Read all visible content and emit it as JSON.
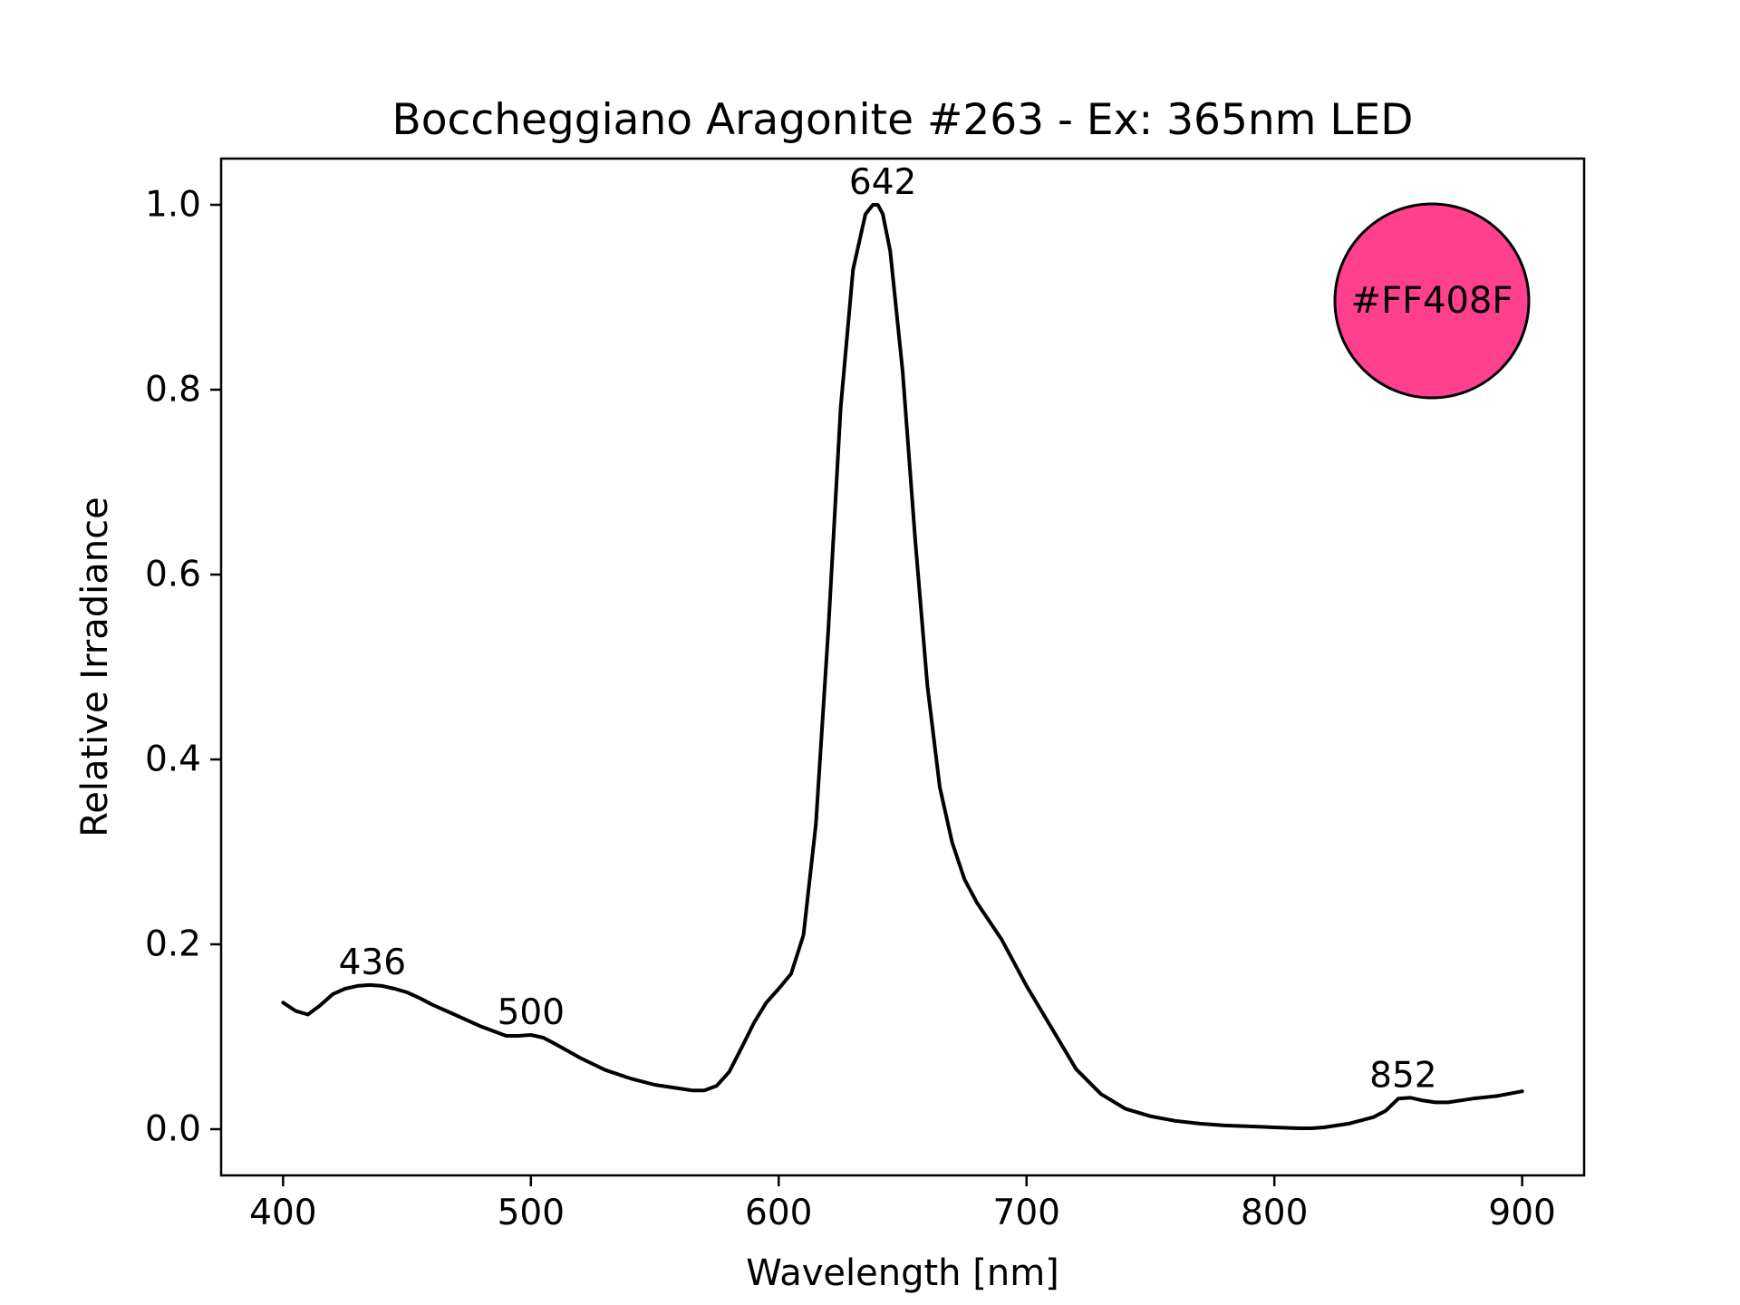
{
  "chart_data": {
    "type": "line",
    "title": "Boccheggiano Aragonite #263 - Ex: 365nm LED",
    "xlabel": "Wavelength [nm]",
    "ylabel": "Relative Irradiance",
    "xlim": [
      375,
      925
    ],
    "ylim": [
      -0.05,
      1.05
    ],
    "xticks": [
      400,
      500,
      600,
      700,
      800,
      900
    ],
    "yticks": [
      0.0,
      0.2,
      0.4,
      0.6,
      0.8,
      1.0
    ],
    "xtick_labels": [
      "400",
      "500",
      "600",
      "700",
      "800",
      "900"
    ],
    "ytick_labels": [
      "0.0",
      "0.2",
      "0.4",
      "0.6",
      "0.8",
      "1.0"
    ],
    "grid": false,
    "line_color": "#000000",
    "series": [
      {
        "x": [
          400,
          405,
          410,
          415,
          420,
          425,
          430,
          435,
          440,
          445,
          450,
          455,
          460,
          470,
          480,
          490,
          495,
          500,
          505,
          510,
          520,
          530,
          540,
          550,
          560,
          565,
          570,
          575,
          580,
          585,
          590,
          595,
          600,
          605,
          610,
          615,
          620,
          625,
          630,
          635,
          638,
          640,
          642,
          645,
          650,
          655,
          660,
          665,
          670,
          675,
          680,
          685,
          690,
          695,
          700,
          710,
          720,
          730,
          740,
          750,
          760,
          770,
          780,
          790,
          800,
          810,
          815,
          820,
          830,
          840,
          845,
          850,
          855,
          860,
          865,
          870,
          880,
          890,
          900
        ],
        "y": [
          0.137,
          0.128,
          0.124,
          0.134,
          0.146,
          0.152,
          0.155,
          0.156,
          0.155,
          0.152,
          0.148,
          0.142,
          0.135,
          0.123,
          0.111,
          0.101,
          0.101,
          0.102,
          0.099,
          0.092,
          0.077,
          0.064,
          0.055,
          0.048,
          0.044,
          0.042,
          0.042,
          0.047,
          0.062,
          0.088,
          0.115,
          0.137,
          0.152,
          0.168,
          0.21,
          0.33,
          0.54,
          0.78,
          0.93,
          0.99,
          1.0,
          1.0,
          0.99,
          0.95,
          0.82,
          0.64,
          0.48,
          0.37,
          0.31,
          0.27,
          0.245,
          0.225,
          0.205,
          0.18,
          0.155,
          0.11,
          0.065,
          0.038,
          0.022,
          0.014,
          0.009,
          0.006,
          0.004,
          0.003,
          0.002,
          0.001,
          0.001,
          0.002,
          0.006,
          0.013,
          0.02,
          0.033,
          0.034,
          0.031,
          0.029,
          0.029,
          0.033,
          0.036,
          0.041
        ]
      }
    ],
    "annotations": [
      {
        "text": "436",
        "x": 436,
        "y": 0.156
      },
      {
        "text": "500",
        "x": 500,
        "y": 0.102
      },
      {
        "text": "642",
        "x": 642,
        "y": 1.0
      },
      {
        "text": "852",
        "x": 852,
        "y": 0.034
      }
    ],
    "color_swatch": {
      "label": "#FF408F",
      "fill": "#FF408F",
      "position": "top-right"
    }
  }
}
